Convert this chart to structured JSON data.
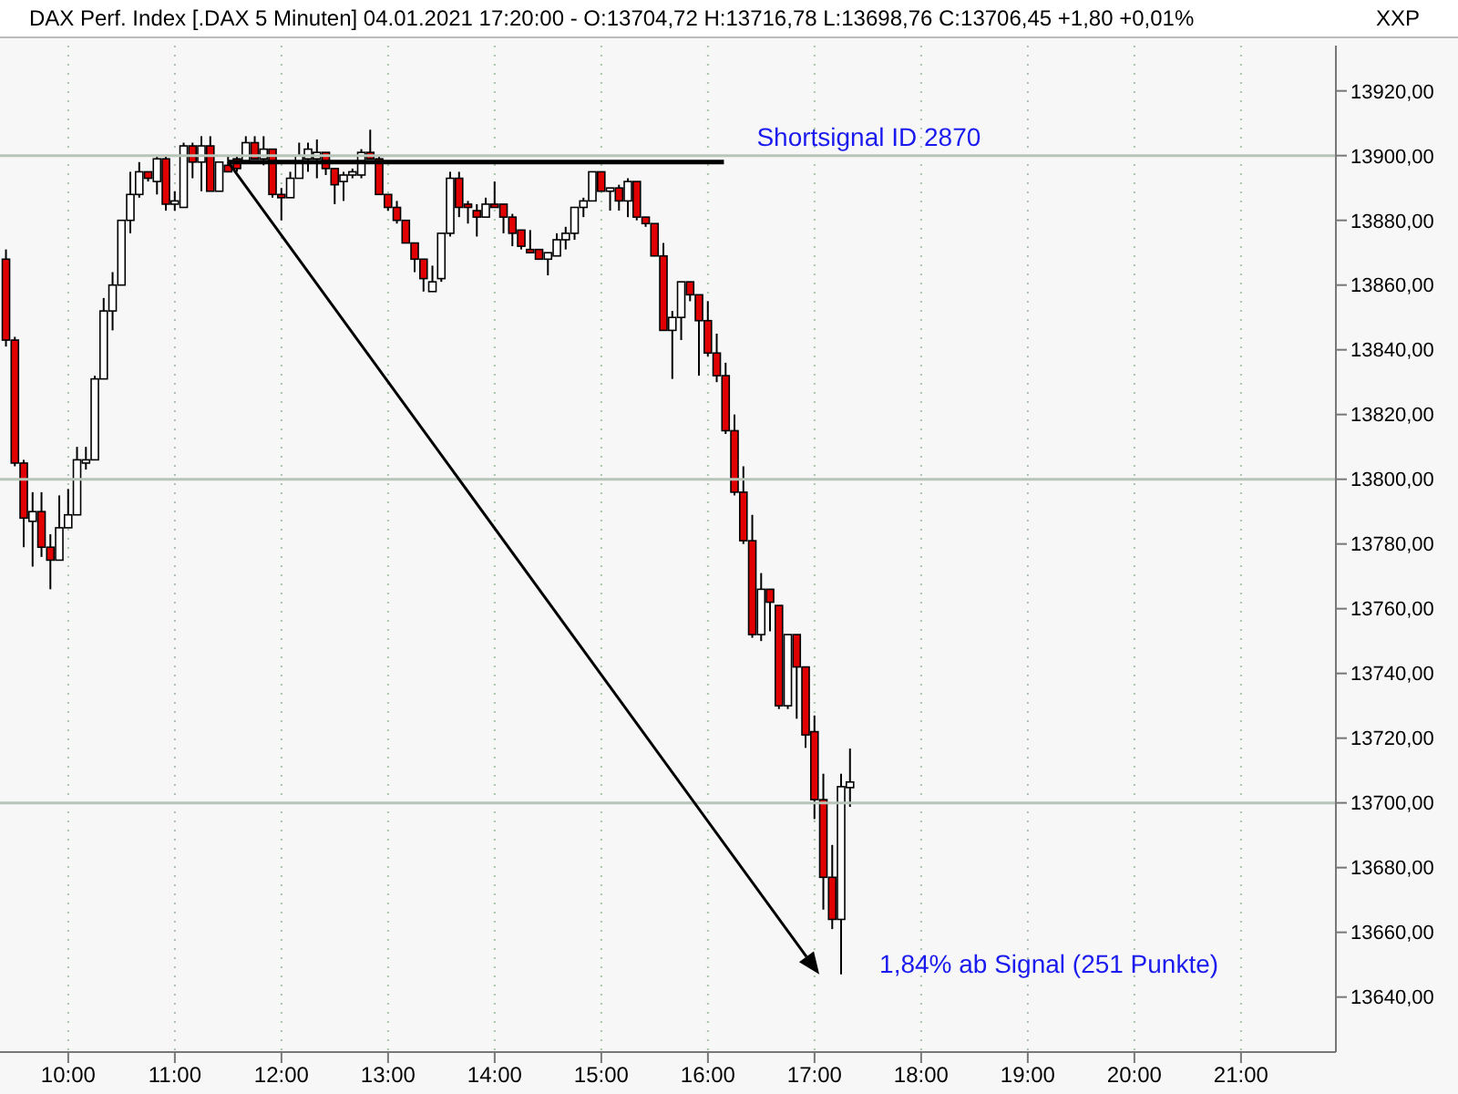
{
  "chart_data": {
    "type": "candlestick",
    "title": "DAX Perf. Index [.DAX  5 Minuten] 04.01.2021 17:20:00 - O:13704,72 H:13716,78 L:13698,76 C:13706,45 +1,80 +0,01%",
    "ylabel": "XXP",
    "x": [
      9.4167,
      9.5,
      9.5833,
      9.6667,
      9.75,
      9.8333,
      9.9167,
      10,
      10.0833,
      10.1667,
      10.25,
      10.3333,
      10.4167,
      10.5,
      10.5833,
      10.6667,
      10.75,
      10.8333,
      10.9167,
      11,
      11.0833,
      11.1667,
      11.25,
      11.3333,
      11.4167,
      11.5,
      11.5833,
      11.6667,
      11.75,
      11.8333,
      11.9167,
      12,
      12.0833,
      12.1667,
      12.25,
      12.3333,
      12.4167,
      12.5,
      12.5833,
      12.6667,
      12.75,
      12.8333,
      12.9167,
      13,
      13.0833,
      13.1667,
      13.25,
      13.3333,
      13.4167,
      13.5,
      13.5833,
      13.6667,
      13.75,
      13.8333,
      13.9167,
      14,
      14.0833,
      14.1667,
      14.25,
      14.3333,
      14.4167,
      14.5,
      14.5833,
      14.6667,
      14.75,
      14.8333,
      14.9167,
      15,
      15.0833,
      15.1667,
      15.25,
      15.3333,
      15.4167,
      15.5,
      15.5833,
      15.6667,
      15.75,
      15.8333,
      15.9167,
      16,
      16.0833,
      16.1667,
      16.25,
      16.3333,
      16.4167,
      16.5,
      16.5833,
      16.6667,
      16.75,
      16.8333,
      16.9167,
      17,
      17.0833,
      17.1667,
      17.25,
      17.3333
    ],
    "ohlc": [
      [
        13868,
        13871,
        13841,
        13843
      ],
      [
        13843,
        13844,
        13804,
        13805
      ],
      [
        13805,
        13806,
        13779,
        13788
      ],
      [
        13787,
        13796,
        13773,
        13790
      ],
      [
        13790,
        13796,
        13776,
        13779
      ],
      [
        13779,
        13783,
        13766,
        13775
      ],
      [
        13775,
        13795,
        13775,
        13785
      ],
      [
        13785,
        13797,
        13785,
        13789
      ],
      [
        13789,
        13810,
        13789,
        13806
      ],
      [
        13805,
        13810,
        13803,
        13806
      ],
      [
        13806,
        13832,
        13806,
        13831
      ],
      [
        13831,
        13856,
        13831,
        13852
      ],
      [
        13852,
        13864,
        13846,
        13860
      ],
      [
        13860,
        13880,
        13860,
        13880
      ],
      [
        13880,
        13895,
        13876,
        13888
      ],
      [
        13888,
        13898,
        13887,
        13895
      ],
      [
        13895,
        13895,
        13892,
        13893
      ],
      [
        13892,
        13900,
        13888,
        13899
      ],
      [
        13899,
        13900,
        13883,
        13885
      ],
      [
        13885,
        13889,
        13883,
        13886
      ],
      [
        13884,
        13904,
        13884,
        13903
      ],
      [
        13903,
        13904,
        13893,
        13898
      ],
      [
        13898,
        13906,
        13889,
        13903
      ],
      [
        13903,
        13906,
        13889,
        13889
      ],
      [
        13889,
        13898,
        13889,
        13898
      ],
      [
        13897,
        13900,
        13895,
        13895
      ],
      [
        13899,
        13900,
        13895,
        13896
      ],
      [
        13898,
        13906,
        13898,
        13904
      ],
      [
        13904,
        13906,
        13899,
        13899
      ],
      [
        13899,
        13906,
        13897,
        13902
      ],
      [
        13902,
        13902,
        13887,
        13888
      ],
      [
        13888,
        13890,
        13880,
        13887
      ],
      [
        13887,
        13895,
        13887,
        13893
      ],
      [
        13893,
        13904,
        13893,
        13900
      ],
      [
        13899,
        13904,
        13895,
        13902
      ],
      [
        13899,
        13905,
        13893,
        13901
      ],
      [
        13901,
        13901,
        13894,
        13896
      ],
      [
        13896,
        13896,
        13885,
        13891
      ],
      [
        13892,
        13895,
        13886,
        13894
      ],
      [
        13894,
        13896,
        13893,
        13895
      ],
      [
        13894,
        13902,
        13893,
        13901
      ],
      [
        13901,
        13908,
        13899,
        13899
      ],
      [
        13899,
        13900,
        13888,
        13888
      ],
      [
        13888,
        13888,
        13883,
        13884
      ],
      [
        13884,
        13886,
        13879,
        13880
      ],
      [
        13880,
        13880,
        13873,
        13873
      ],
      [
        13873,
        13873,
        13864,
        13868
      ],
      [
        13868,
        13868,
        13858,
        13862
      ],
      [
        13858,
        13866,
        13858,
        13861
      ],
      [
        13862,
        13876,
        13861,
        13876
      ],
      [
        13876,
        13895,
        13875,
        13893
      ],
      [
        13893,
        13895,
        13881,
        13884
      ],
      [
        13885,
        13886,
        13879,
        13884
      ],
      [
        13883,
        13885,
        13875,
        13881
      ],
      [
        13881,
        13887,
        13881,
        13885
      ],
      [
        13885,
        13892,
        13884,
        13884
      ],
      [
        13885,
        13885,
        13876,
        13881
      ],
      [
        13881,
        13882,
        13872,
        13876
      ],
      [
        13877,
        13877,
        13871,
        13872
      ],
      [
        13871,
        13877,
        13870,
        13870
      ],
      [
        13871,
        13871,
        13868,
        13868
      ],
      [
        13868,
        13870,
        13863,
        13870
      ],
      [
        13869,
        13876,
        13869,
        13874
      ],
      [
        13874,
        13878,
        13871,
        13876
      ],
      [
        13876,
        13884,
        13874,
        13884
      ],
      [
        13884,
        13887,
        13881,
        13886
      ],
      [
        13886,
        13895,
        13886,
        13895
      ],
      [
        13895,
        13895,
        13889,
        13889
      ],
      [
        13889,
        13890,
        13883,
        13890
      ],
      [
        13890,
        13891,
        13883,
        13886
      ],
      [
        13886,
        13893,
        13881,
        13892
      ],
      [
        13892,
        13892,
        13880,
        13881
      ],
      [
        13881,
        13881,
        13878,
        13879
      ],
      [
        13879,
        13879,
        13869,
        13869
      ],
      [
        13869,
        13873,
        13846,
        13846
      ],
      [
        13846,
        13852,
        13831,
        13850
      ],
      [
        13850,
        13861,
        13843,
        13861
      ],
      [
        13861,
        13861,
        13855,
        13857
      ],
      [
        13857,
        13857,
        13832,
        13849
      ],
      [
        13849,
        13855,
        13838,
        13839
      ],
      [
        13839,
        13845,
        13830,
        13832
      ],
      [
        13832,
        13836,
        13814,
        13815
      ],
      [
        13815,
        13820,
        13795,
        13796
      ],
      [
        13796,
        13804,
        13780,
        13781
      ],
      [
        13781,
        13789,
        13751,
        13752
      ],
      [
        13752,
        13771,
        13750,
        13766
      ],
      [
        13766,
        13766,
        13753,
        13762
      ],
      [
        13761,
        13761,
        13729,
        13730
      ],
      [
        13730,
        13752,
        13729,
        13752
      ],
      [
        13752,
        13752,
        13726,
        13742
      ],
      [
        13742,
        13742,
        13717,
        13721
      ],
      [
        13722,
        13727,
        13695,
        13701
      ],
      [
        13701,
        13709,
        13667,
        13677
      ],
      [
        13677,
        13687,
        13661,
        13664
      ],
      [
        13664,
        13709,
        13647,
        13705
      ],
      [
        13704.72,
        13716.78,
        13698.76,
        13706.45
      ]
    ],
    "series": [
      {
        "type": "line",
        "x": [
          11.5,
          16.15
        ],
        "values": [
          13898,
          13898
        ],
        "color": "#000000"
      }
    ],
    "xlim": [
      9.36,
      21.89
    ],
    "xticks": [
      {
        "value": 10,
        "label": "10:00"
      },
      {
        "value": 11,
        "label": "11:00"
      },
      {
        "value": 12,
        "label": "12:00"
      },
      {
        "value": 13,
        "label": "13:00"
      },
      {
        "value": 14,
        "label": "14:00"
      },
      {
        "value": 15,
        "label": "15:00"
      },
      {
        "value": 16,
        "label": "16:00"
      },
      {
        "value": 17,
        "label": "17:00"
      },
      {
        "value": 18,
        "label": "18:00"
      },
      {
        "value": 19,
        "label": "19:00"
      },
      {
        "value": 20,
        "label": "20:00"
      },
      {
        "value": 21,
        "label": "21:00"
      }
    ],
    "ylim": [
      13623,
      13934
    ],
    "yticks": [
      {
        "value": 13640,
        "label": "13640,00"
      },
      {
        "value": 13660,
        "label": "13660,00"
      },
      {
        "value": 13680,
        "label": "13680,00"
      },
      {
        "value": 13700,
        "label": "13700,00"
      },
      {
        "value": 13720,
        "label": "13720,00"
      },
      {
        "value": 13740,
        "label": "13740,00"
      },
      {
        "value": 13760,
        "label": "13760,00"
      },
      {
        "value": 13780,
        "label": "13780,00"
      },
      {
        "value": 13800,
        "label": "13800,00"
      },
      {
        "value": 13820,
        "label": "13820,00"
      },
      {
        "value": 13840,
        "label": "13840,00"
      },
      {
        "value": 13860,
        "label": "13860,00"
      },
      {
        "value": 13880,
        "label": "13880,00"
      },
      {
        "value": 13900,
        "label": "13900,00"
      },
      {
        "value": 13920,
        "label": "13920,00"
      }
    ],
    "grid": true,
    "ref_lines": [
      {
        "axis": "y",
        "value": 13700,
        "color": "#b8c4b8"
      },
      {
        "axis": "y",
        "value": 13800,
        "color": "#b8c4b8"
      },
      {
        "axis": "y",
        "value": 13900,
        "color": "#b8c4b8"
      }
    ],
    "annotations": [
      "Shortsignal ID 2870",
      "1,84% ab Signal (251 Punkte)"
    ]
  }
}
